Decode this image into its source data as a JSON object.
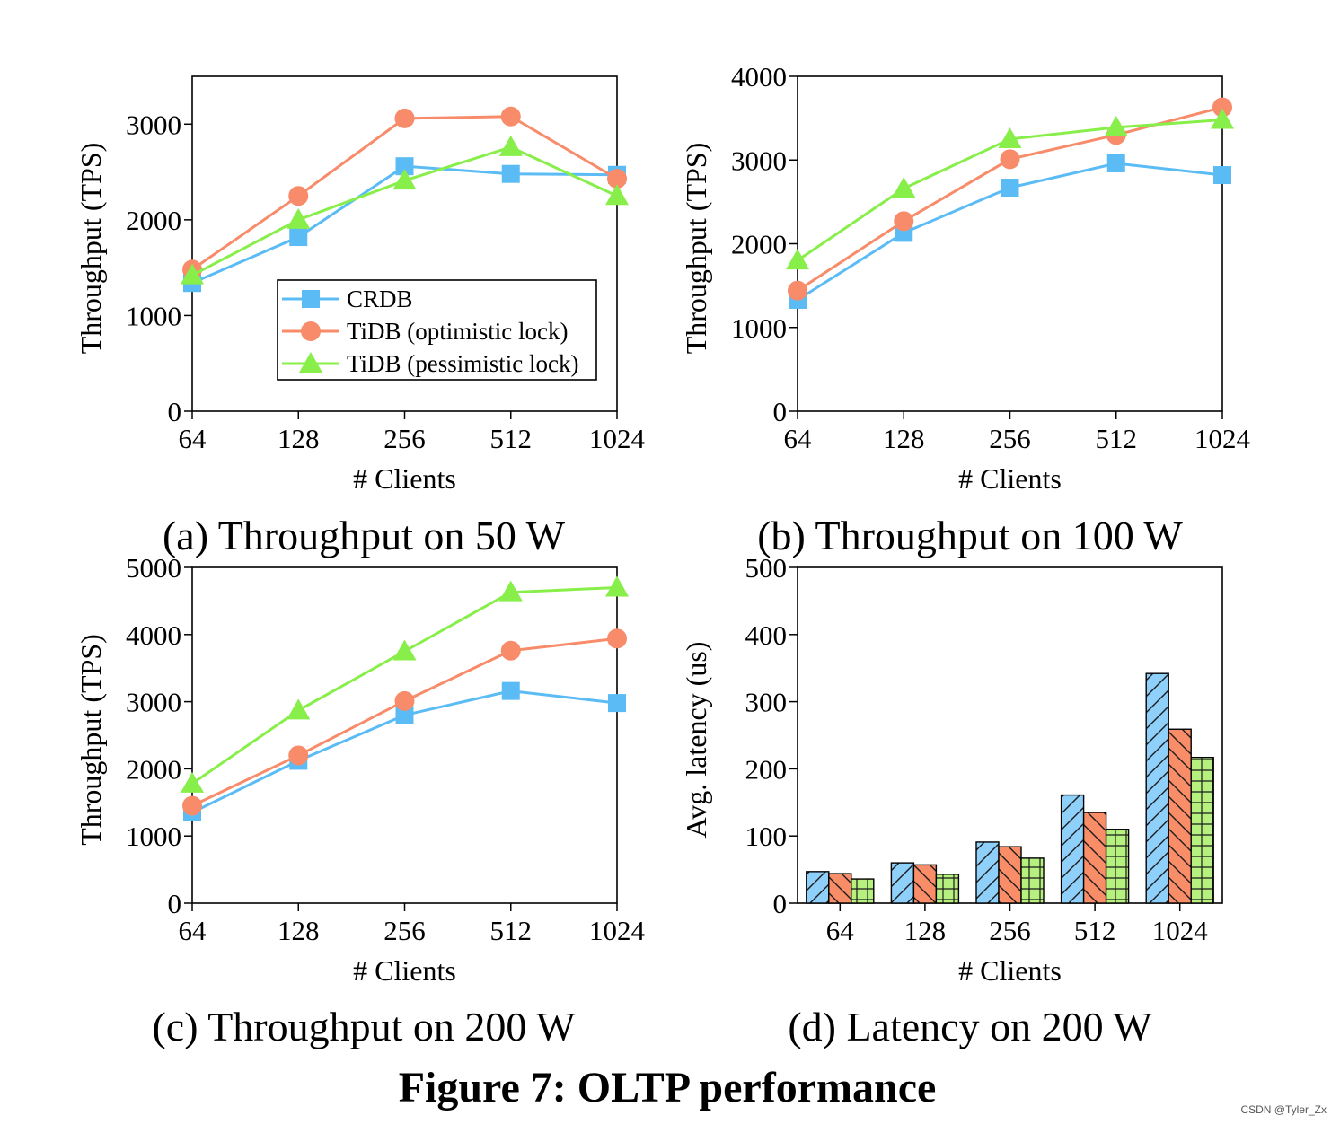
{
  "figure": {
    "title": "Figure 7: OLTP performance",
    "watermark": "CSDN @Tyler_Zx"
  },
  "colors": {
    "CRDB": "#5bbcf5",
    "TiDB_opt": "#f78b6a",
    "TiDB_pess": "#88ee4a",
    "CRDB_bar": "#8fd0fa",
    "TiDB_opt_bar": "#f98d68",
    "TiDB_pess_bar": "#b6f07e"
  },
  "chart_data": [
    {
      "id": "a",
      "type": "line",
      "caption": "(a) Throughput on 50 W",
      "xlabel": "# Clients",
      "ylabel": "Throughput (TPS)",
      "categories": [
        "64",
        "128",
        "256",
        "512",
        "1024"
      ],
      "ylim": [
        0,
        3500
      ],
      "yticks": [
        0,
        1000,
        2000,
        3000
      ],
      "legend": "inside-lower-right",
      "series": [
        {
          "name": "CRDB",
          "marker": "square",
          "values": [
            1340,
            1820,
            2560,
            2480,
            2470
          ]
        },
        {
          "name": "TiDB (optimistic lock)",
          "marker": "circle",
          "values": [
            1480,
            2250,
            3060,
            3080,
            2430
          ]
        },
        {
          "name": "TiDB (pessimistic lock)",
          "marker": "triangle",
          "values": [
            1420,
            2000,
            2410,
            2760,
            2250
          ]
        }
      ]
    },
    {
      "id": "b",
      "type": "line",
      "caption": "(b) Throughput on 100 W",
      "xlabel": "# Clients",
      "ylabel": "Throughput (TPS)",
      "categories": [
        "64",
        "128",
        "256",
        "512",
        "1024"
      ],
      "ylim": [
        0,
        4000
      ],
      "yticks": [
        0,
        1000,
        2000,
        3000,
        4000
      ],
      "series": [
        {
          "name": "CRDB",
          "marker": "square",
          "values": [
            1330,
            2130,
            2670,
            2960,
            2820
          ]
        },
        {
          "name": "TiDB (optimistic lock)",
          "marker": "circle",
          "values": [
            1440,
            2270,
            3010,
            3300,
            3630
          ]
        },
        {
          "name": "TiDB (pessimistic lock)",
          "marker": "triangle",
          "values": [
            1800,
            2660,
            3250,
            3390,
            3480
          ]
        }
      ]
    },
    {
      "id": "c",
      "type": "line",
      "caption": "(c) Throughput on 200 W",
      "xlabel": "# Clients",
      "ylabel": "Throughput (TPS)",
      "categories": [
        "64",
        "128",
        "256",
        "512",
        "1024"
      ],
      "ylim": [
        0,
        5000
      ],
      "yticks": [
        0,
        1000,
        2000,
        3000,
        4000,
        5000
      ],
      "series": [
        {
          "name": "CRDB",
          "marker": "square",
          "values": [
            1350,
            2120,
            2800,
            3160,
            2980
          ]
        },
        {
          "name": "TiDB (optimistic lock)",
          "marker": "circle",
          "values": [
            1450,
            2200,
            3010,
            3760,
            3940
          ]
        },
        {
          "name": "TiDB (pessimistic lock)",
          "marker": "triangle",
          "values": [
            1780,
            2870,
            3750,
            4630,
            4700
          ]
        }
      ]
    },
    {
      "id": "d",
      "type": "bar",
      "caption": "(d) Latency on 200 W",
      "xlabel": "# Clients",
      "ylabel": "Avg. latency (us)",
      "categories": [
        "64",
        "128",
        "256",
        "512",
        "1024"
      ],
      "ylim": [
        0,
        500
      ],
      "yticks": [
        0,
        100,
        200,
        300,
        400,
        500
      ],
      "series": [
        {
          "name": "CRDB",
          "hatch": "forward",
          "values": [
            47,
            60,
            91,
            161,
            342
          ]
        },
        {
          "name": "TiDB (optimistic lock)",
          "hatch": "back",
          "values": [
            44,
            57,
            84,
            135,
            259
          ]
        },
        {
          "name": "TiDB (pessimistic lock)",
          "hatch": "grid",
          "values": [
            36,
            43,
            67,
            110,
            217
          ]
        }
      ]
    }
  ]
}
